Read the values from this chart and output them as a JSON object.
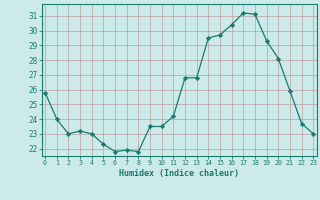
{
  "x": [
    0,
    1,
    2,
    3,
    4,
    5,
    6,
    7,
    8,
    9,
    10,
    11,
    12,
    13,
    14,
    15,
    16,
    17,
    18,
    19,
    20,
    21,
    22,
    23
  ],
  "y": [
    25.8,
    24.0,
    23.0,
    23.2,
    23.0,
    22.3,
    21.8,
    21.9,
    21.8,
    23.5,
    23.5,
    24.2,
    26.8,
    26.8,
    29.5,
    29.7,
    30.4,
    31.2,
    31.1,
    29.3,
    28.1,
    25.9,
    23.7,
    23.0
  ],
  "line_color": "#1a7a6e",
  "marker": "D",
  "marker_size": 2.2,
  "bg_color": "#cceaea",
  "grid_color": "#bf9f9f",
  "xlabel": "Humidex (Indice chaleur)",
  "ylim": [
    21.5,
    31.8
  ],
  "yticks": [
    22,
    23,
    24,
    25,
    26,
    27,
    28,
    29,
    30,
    31
  ],
  "xticks": [
    0,
    1,
    2,
    3,
    4,
    5,
    6,
    7,
    8,
    9,
    10,
    11,
    12,
    13,
    14,
    15,
    16,
    17,
    18,
    19,
    20,
    21,
    22,
    23
  ],
  "xlim": [
    -0.3,
    23.3
  ],
  "axis_color": "#1a7a6e",
  "tick_color": "#1a7a6e",
  "label_color": "#1a7a6e",
  "xlabel_fontsize": 6.0,
  "ytick_fontsize": 5.5,
  "xtick_fontsize": 4.8
}
